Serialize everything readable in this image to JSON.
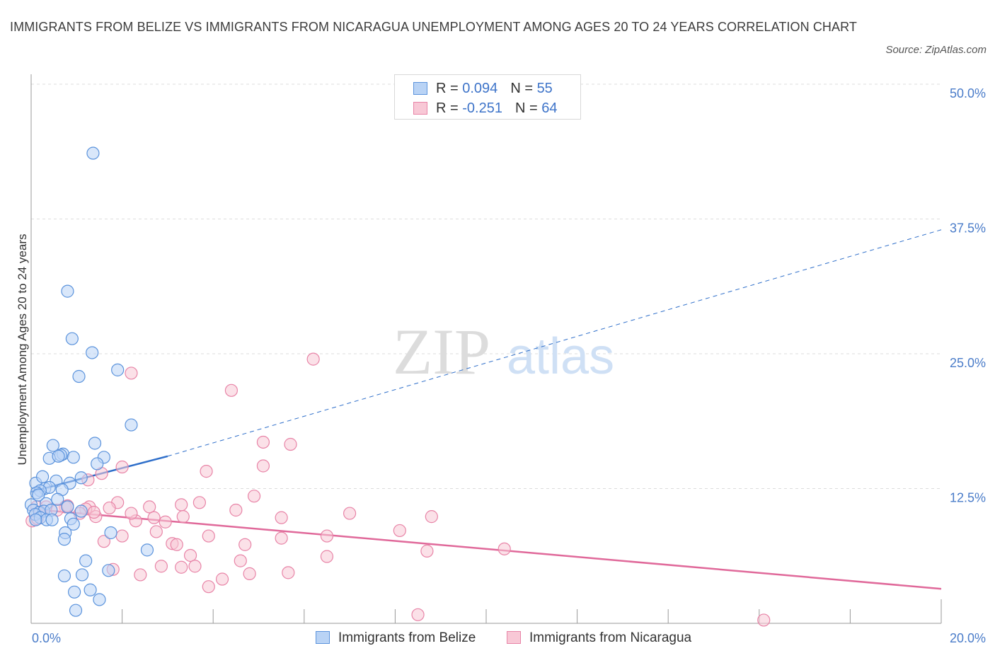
{
  "title": "IMMIGRANTS FROM BELIZE VS IMMIGRANTS FROM NICARAGUA UNEMPLOYMENT AMONG AGES 20 TO 24 YEARS CORRELATION CHART",
  "source": "Source: ZipAtlas.com",
  "watermark": {
    "zip": "ZIP",
    "atlas": "atlas"
  },
  "colors": {
    "belize_fill": "#b9d3f5",
    "belize_stroke": "#5b93dc",
    "belize_line": "#2f6fca",
    "nicaragua_fill": "#f8c8d6",
    "nicaragua_stroke": "#e884a7",
    "nicaragua_line": "#e0699a",
    "grid": "#dcdcdc",
    "tick_text": "#4a7cc9"
  },
  "legend": {
    "belize": {
      "r_label": "R =",
      "r_value": "0.094",
      "n_label": "N =",
      "n_value": "55"
    },
    "nicaragua": {
      "r_label": "R =",
      "r_value": "-0.251",
      "n_label": "N =",
      "n_value": "64"
    }
  },
  "series_labels": {
    "belize": "Immigrants from Belize",
    "nicaragua": "Immigrants from Nicaragua"
  },
  "chart_data": {
    "type": "scatter",
    "title": "IMMIGRANTS FROM BELIZE VS IMMIGRANTS FROM NICARAGUA UNEMPLOYMENT AMONG AGES 20 TO 24 YEARS CORRELATION CHART",
    "xlabel": "",
    "ylabel": "Unemployment Among Ages 20 to 24 years",
    "xlim": [
      0,
      20
    ],
    "ylim": [
      0,
      50
    ],
    "x_tick_labels": [
      "0.0%",
      "20.0%"
    ],
    "y_ticks": [
      12.5,
      25.0,
      37.5,
      50.0
    ],
    "y_tick_labels": [
      "12.5%",
      "25.0%",
      "37.5%",
      "50.0%"
    ],
    "grid": true,
    "series": [
      {
        "name": "Immigrants from Belize",
        "R": 0.094,
        "N": 55,
        "trend_solid": {
          "x": [
            0.0,
            3.0
          ],
          "y": [
            12.2,
            15.5
          ]
        },
        "trend_dashed": {
          "x": [
            3.0,
            20.0
          ],
          "y": [
            15.5,
            36.5
          ]
        },
        "points": [
          [
            1.36,
            43.6
          ],
          [
            0.8,
            30.8
          ],
          [
            0.9,
            26.4
          ],
          [
            1.34,
            25.1
          ],
          [
            1.9,
            23.5
          ],
          [
            1.05,
            22.9
          ],
          [
            2.2,
            18.4
          ],
          [
            1.4,
            16.7
          ],
          [
            0.48,
            16.5
          ],
          [
            0.7,
            15.7
          ],
          [
            0.65,
            15.6
          ],
          [
            0.4,
            15.3
          ],
          [
            0.6,
            15.5
          ],
          [
            0.93,
            15.4
          ],
          [
            1.6,
            15.4
          ],
          [
            0.1,
            13.0
          ],
          [
            0.25,
            13.6
          ],
          [
            1.1,
            13.5
          ],
          [
            0.85,
            13.0
          ],
          [
            0.55,
            13.2
          ],
          [
            1.45,
            14.8
          ],
          [
            0.3,
            12.5
          ],
          [
            0.4,
            12.6
          ],
          [
            0.2,
            12.3
          ],
          [
            0.12,
            12.1
          ],
          [
            0.16,
            11.9
          ],
          [
            0.68,
            12.4
          ],
          [
            0.0,
            11.0
          ],
          [
            0.33,
            11.1
          ],
          [
            0.58,
            11.5
          ],
          [
            0.8,
            10.8
          ],
          [
            0.05,
            10.5
          ],
          [
            0.18,
            10.3
          ],
          [
            0.28,
            10.4
          ],
          [
            0.44,
            10.5
          ],
          [
            0.09,
            10.1
          ],
          [
            0.2,
            9.8
          ],
          [
            0.34,
            9.6
          ],
          [
            0.1,
            9.6
          ],
          [
            0.46,
            9.6
          ],
          [
            0.87,
            9.7
          ],
          [
            1.1,
            10.4
          ],
          [
            0.93,
            9.2
          ],
          [
            0.75,
            8.4
          ],
          [
            1.75,
            8.4
          ],
          [
            0.73,
            7.8
          ],
          [
            2.55,
            6.8
          ],
          [
            1.2,
            5.8
          ],
          [
            1.7,
            4.9
          ],
          [
            1.12,
            4.5
          ],
          [
            0.73,
            4.4
          ],
          [
            1.3,
            3.1
          ],
          [
            0.95,
            2.9
          ],
          [
            1.5,
            2.2
          ],
          [
            0.98,
            1.2
          ]
        ]
      },
      {
        "name": "Immigrants from Nicaragua",
        "R": -0.251,
        "N": 64,
        "trend_solid": {
          "x": [
            0.0,
            20.0
          ],
          "y": [
            10.6,
            3.2
          ]
        },
        "points": [
          [
            6.2,
            24.5
          ],
          [
            2.2,
            23.2
          ],
          [
            4.4,
            21.6
          ],
          [
            5.1,
            16.8
          ],
          [
            5.7,
            16.6
          ],
          [
            2.0,
            14.5
          ],
          [
            5.1,
            14.6
          ],
          [
            3.85,
            14.1
          ],
          [
            1.55,
            13.9
          ],
          [
            1.25,
            13.3
          ],
          [
            4.9,
            11.8
          ],
          [
            1.9,
            11.2
          ],
          [
            3.7,
            11.2
          ],
          [
            3.3,
            11.0
          ],
          [
            0.12,
            10.8
          ],
          [
            0.33,
            10.8
          ],
          [
            0.75,
            10.8
          ],
          [
            1.28,
            10.8
          ],
          [
            2.6,
            10.8
          ],
          [
            0.57,
            10.5
          ],
          [
            1.2,
            10.6
          ],
          [
            1.72,
            10.7
          ],
          [
            0.2,
            10.3
          ],
          [
            1.07,
            10.2
          ],
          [
            7.0,
            10.2
          ],
          [
            2.3,
            9.5
          ],
          [
            2.95,
            9.4
          ],
          [
            1.42,
            9.9
          ],
          [
            3.34,
            9.9
          ],
          [
            8.8,
            9.9
          ],
          [
            5.5,
            9.8
          ],
          [
            0.02,
            9.5
          ],
          [
            0.14,
            9.7
          ],
          [
            3.9,
            8.1
          ],
          [
            6.5,
            8.1
          ],
          [
            5.5,
            7.9
          ],
          [
            2.0,
            8.1
          ],
          [
            2.75,
            8.5
          ],
          [
            8.1,
            8.6
          ],
          [
            1.6,
            7.6
          ],
          [
            3.1,
            7.4
          ],
          [
            3.2,
            7.3
          ],
          [
            4.7,
            7.3
          ],
          [
            8.7,
            6.7
          ],
          [
            10.4,
            6.9
          ],
          [
            3.5,
            6.3
          ],
          [
            6.5,
            6.2
          ],
          [
            4.6,
            5.8
          ],
          [
            2.86,
            5.3
          ],
          [
            3.6,
            5.3
          ],
          [
            3.3,
            5.2
          ],
          [
            5.65,
            4.7
          ],
          [
            1.8,
            5.0
          ],
          [
            4.8,
            4.6
          ],
          [
            2.4,
            4.5
          ],
          [
            4.2,
            4.1
          ],
          [
            3.9,
            3.4
          ],
          [
            8.5,
            0.8
          ],
          [
            16.1,
            0.3
          ],
          [
            0.8,
            10.9
          ],
          [
            1.38,
            10.3
          ],
          [
            2.7,
            9.8
          ],
          [
            2.2,
            10.2
          ],
          [
            4.5,
            10.5
          ]
        ]
      }
    ]
  }
}
